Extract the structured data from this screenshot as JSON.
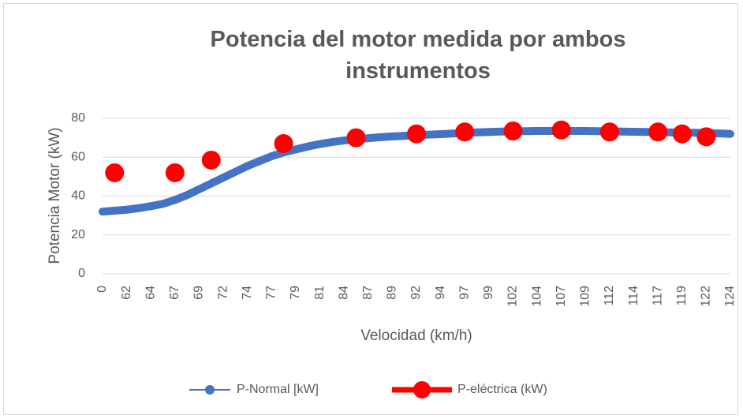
{
  "chart_data": {
    "type": "line",
    "title": "Potencia del motor medida por ambos instrumentos",
    "x_label": "Velocidad (km/h)",
    "y_label": "Potencia Motor (kW)",
    "categories": [
      "0",
      null,
      "62",
      null,
      "64",
      null,
      "67",
      null,
      "69",
      null,
      "72",
      null,
      "74",
      null,
      "77",
      null,
      "79",
      null,
      "81",
      null,
      "84",
      null,
      "87",
      null,
      "89",
      null,
      "92",
      null,
      "94",
      null,
      "97",
      null,
      "99",
      null,
      "102",
      null,
      "104",
      null,
      "107",
      null,
      "109",
      null,
      "112",
      null,
      "114",
      null,
      "117",
      null,
      "119",
      null,
      "122",
      null,
      "124"
    ],
    "series": [
      {
        "name": "P-Normal [kW]",
        "color": "#4472c4",
        "values": [
          32,
          32.5,
          33,
          33.8,
          34.8,
          36,
          38,
          40.5,
          43.5,
          46.5,
          49.5,
          52.5,
          55.5,
          58,
          60.5,
          62.5,
          64,
          65.5,
          66.8,
          67.8,
          68.6,
          69.3,
          69.8,
          70.3,
          70.7,
          71,
          71.3,
          71.6,
          71.9,
          72.2,
          72.5,
          72.8,
          73,
          73.2,
          73.3,
          73.4,
          73.5,
          73.5,
          73.5,
          73.5,
          73.5,
          73.4,
          73.3,
          73.2,
          73.1,
          73,
          72.9,
          72.8,
          72.7,
          72.6,
          72.5,
          72.3,
          72
        ]
      },
      {
        "name": "P-eléctrica (kW)",
        "color": "#ff0000",
        "values": [
          null,
          52,
          null,
          null,
          null,
          null,
          52,
          null,
          null,
          58.5,
          null,
          null,
          null,
          null,
          null,
          67,
          null,
          null,
          null,
          null,
          null,
          70,
          null,
          null,
          null,
          null,
          72,
          null,
          null,
          null,
          73,
          null,
          null,
          null,
          73.5,
          null,
          null,
          null,
          74,
          null,
          null,
          null,
          73,
          null,
          null,
          null,
          73,
          null,
          72,
          null,
          70.5,
          null,
          null
        ]
      }
    ],
    "ylim": [
      0,
      80
    ],
    "yticks": [
      0,
      20,
      40,
      60,
      80
    ],
    "grid": true,
    "legend": "bottom"
  }
}
